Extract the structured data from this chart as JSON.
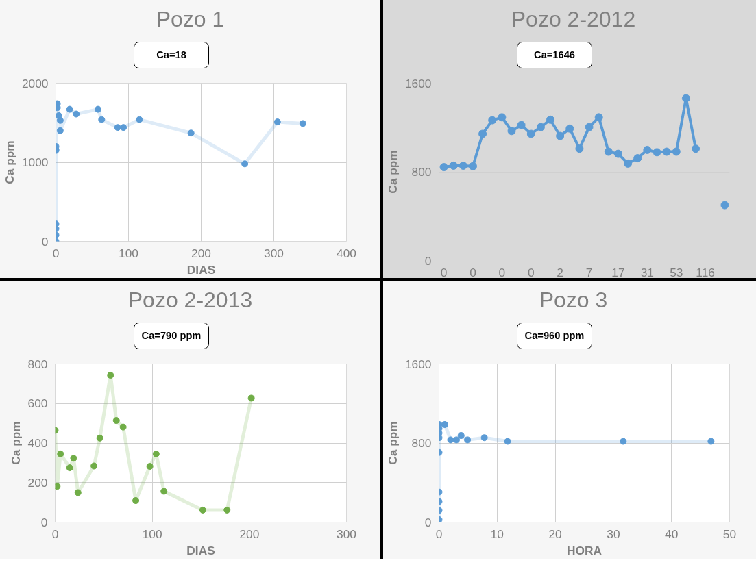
{
  "chart_data": [
    {
      "type": "line",
      "title": "Pozo 1",
      "xlabel": "DIAS",
      "ylabel": "Ca ppm",
      "annotations": [
        "Ca=18"
      ],
      "marker": "circle",
      "grid": true,
      "xlim": [
        0,
        400
      ],
      "ylim": [
        0,
        2000
      ],
      "xticks": [
        0,
        100,
        200,
        300,
        400
      ],
      "yticks": [
        0,
        1000,
        2000
      ],
      "series": [
        {
          "color": "#5b9bd5",
          "x": [
            0,
            0,
            0,
            0,
            0,
            0,
            0,
            2,
            2,
            4,
            6,
            6,
            19,
            28,
            58,
            63,
            85,
            93,
            115,
            186,
            260,
            305,
            340
          ],
          "values": [
            0,
            80,
            160,
            220,
            1150,
            1160,
            1200,
            1740,
            1690,
            1590,
            1530,
            1400,
            1670,
            1610,
            1670,
            1540,
            1440,
            1440,
            1540,
            1370,
            980,
            1510,
            1490
          ]
        }
      ]
    },
    {
      "type": "line",
      "title": "Pozo 2-2012",
      "ylabel": "Ca ppm",
      "annotations": [
        "Ca=1646"
      ],
      "marker": "circle",
      "grid": "y",
      "ylim": [
        0,
        1600
      ],
      "yticks": [
        0,
        800,
        1600
      ],
      "categories": [
        "0",
        null,
        null,
        "0",
        null,
        null,
        "0",
        null,
        null,
        "0",
        null,
        null,
        "2",
        null,
        null,
        "7",
        null,
        null,
        "17",
        null,
        null,
        "31",
        null,
        null,
        "53",
        null,
        null,
        "116",
        null,
        null
      ],
      "series": [
        {
          "color": "#5b9bd5",
          "values": [
            843,
            856,
            856,
            851,
            1143,
            1266,
            1292,
            1169,
            1223,
            1143,
            1204,
            1271,
            1124,
            1191,
            1009,
            1204,
            1292,
            982,
            963,
            875,
            923,
            998,
            977,
            982,
            982,
            1464,
            1009,
            null,
            null,
            500
          ]
        }
      ]
    },
    {
      "type": "line",
      "title": "Pozo 2-2013",
      "xlabel": "DIAS",
      "ylabel": "Ca ppm",
      "annotations": [
        "Ca=790 ppm"
      ],
      "marker": "circle",
      "grid": true,
      "xlim": [
        0,
        300
      ],
      "ylim": [
        0,
        800
      ],
      "xticks": [
        0,
        100,
        200,
        300
      ],
      "yticks": [
        0,
        200,
        400,
        600,
        800
      ],
      "series": [
        {
          "color": "#70ad47",
          "x": [
            0,
            2,
            5.5,
            15,
            19,
            23.5,
            40,
            46,
            57,
            63,
            70,
            83,
            97.5,
            104,
            112,
            152,
            177,
            202
          ],
          "values": [
            464,
            181,
            345,
            275,
            323,
            149,
            284,
            425,
            743,
            514,
            481,
            109,
            282,
            345,
            156,
            61,
            61,
            627
          ]
        }
      ]
    },
    {
      "type": "line",
      "title": "Pozo 3",
      "xlabel": "HORA",
      "ylabel": "Ca ppm",
      "annotations": [
        "Ca=960 ppm"
      ],
      "marker": "circle",
      "grid": true,
      "xlim": [
        0,
        50
      ],
      "ylim": [
        0,
        1600
      ],
      "xticks": [
        0,
        10,
        20,
        30,
        40,
        50
      ],
      "yticks": [
        0,
        800,
        1600
      ],
      "series": [
        {
          "color": "#5b9bd5",
          "x": [
            0,
            0,
            0,
            0,
            0,
            0,
            0,
            0,
            0,
            1,
            2,
            3,
            3.8,
            4.9,
            7.8,
            11.8,
            31.7,
            46.8
          ],
          "values": [
            25,
            118,
            208,
            304,
            705,
            854,
            901,
            947,
            987,
            987,
            832,
            832,
            876,
            832,
            854,
            817,
            817,
            817
          ]
        }
      ]
    }
  ]
}
